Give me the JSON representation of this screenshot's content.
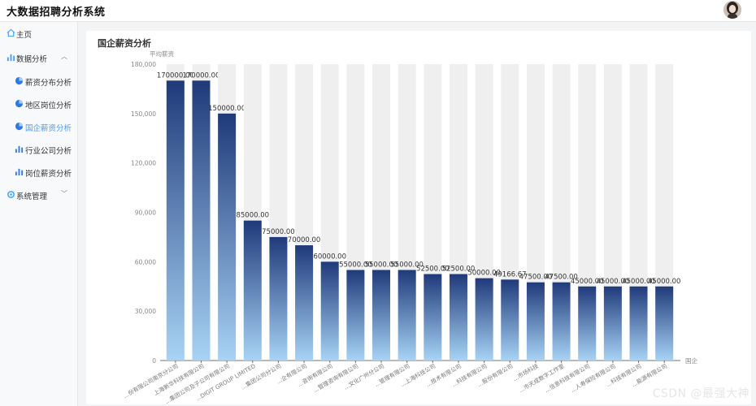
{
  "app": {
    "title": "大数据招聘分析系统"
  },
  "sidebar": {
    "home": "主页",
    "data_analysis": "数据分析",
    "items": [
      {
        "label": "薪资分布分析",
        "icon": "pie-chart-icon",
        "active": false
      },
      {
        "label": "地区岗位分析",
        "icon": "pie-chart-icon",
        "active": false
      },
      {
        "label": "国企薪资分析",
        "icon": "pie-chart-icon",
        "active": true
      },
      {
        "label": "行业公司分析",
        "icon": "bar-chart-icon",
        "active": false
      },
      {
        "label": "岗位薪资分析",
        "icon": "bar-chart-icon",
        "active": false
      }
    ],
    "system": "系统管理"
  },
  "panel": {
    "title": "国企薪资分析"
  },
  "watermark": "CSDN @最强大神",
  "colors": {
    "bar_top": "#1f3a7a",
    "bar_bottom": "#a8d3f5",
    "bg_bar": "#efefef",
    "accent": "#409eff"
  },
  "chart_data": {
    "type": "bar",
    "ylabel": "平均薪资",
    "xlabel": "国企",
    "ylim": [
      0,
      180000
    ],
    "yticks": [
      "0",
      "30,000",
      "60,000",
      "90,000",
      "120,000",
      "150,000",
      "180,000"
    ],
    "categories": [
      "...份有限公司南京分公司",
      "上海新华科技有限公司",
      "...集团公司及子公司有限公司",
      "...DIGIT GROUP LIMITED",
      "...集团公司分公司",
      "...企有限公司",
      "...咨询有限公司",
      "...管理咨询有限公司",
      "...文化广州分公司",
      "...管理有限公司",
      "...上海科技公司",
      "...技术有限公司",
      "...科技有限公司",
      "...股份有限公司",
      "...市场科技",
      "...市天成数字工作室",
      "...信息科技有限公司",
      "...人寿保险有限公司",
      "...科技有限公司",
      "...能源有限公司"
    ],
    "values": [
      170000,
      170000,
      150000,
      85000,
      75000,
      70000,
      60000,
      55000,
      55000,
      55000,
      52500,
      52500,
      50000,
      49166.67,
      47500,
      47500,
      45000,
      45000,
      45000,
      45000
    ],
    "value_labels": [
      "170000.00",
      "170000.00",
      "150000.00",
      "85000.00",
      "75000.00",
      "70000.00",
      "60000.00",
      "55000.00",
      "55000.00",
      "55000.00",
      "52500.00",
      "52500.00",
      "50000.00",
      "49166.67",
      "47500.00",
      "47500.00",
      "45000.00",
      "45000.00",
      "45000.00",
      "45000.00"
    ],
    "grid": false
  }
}
